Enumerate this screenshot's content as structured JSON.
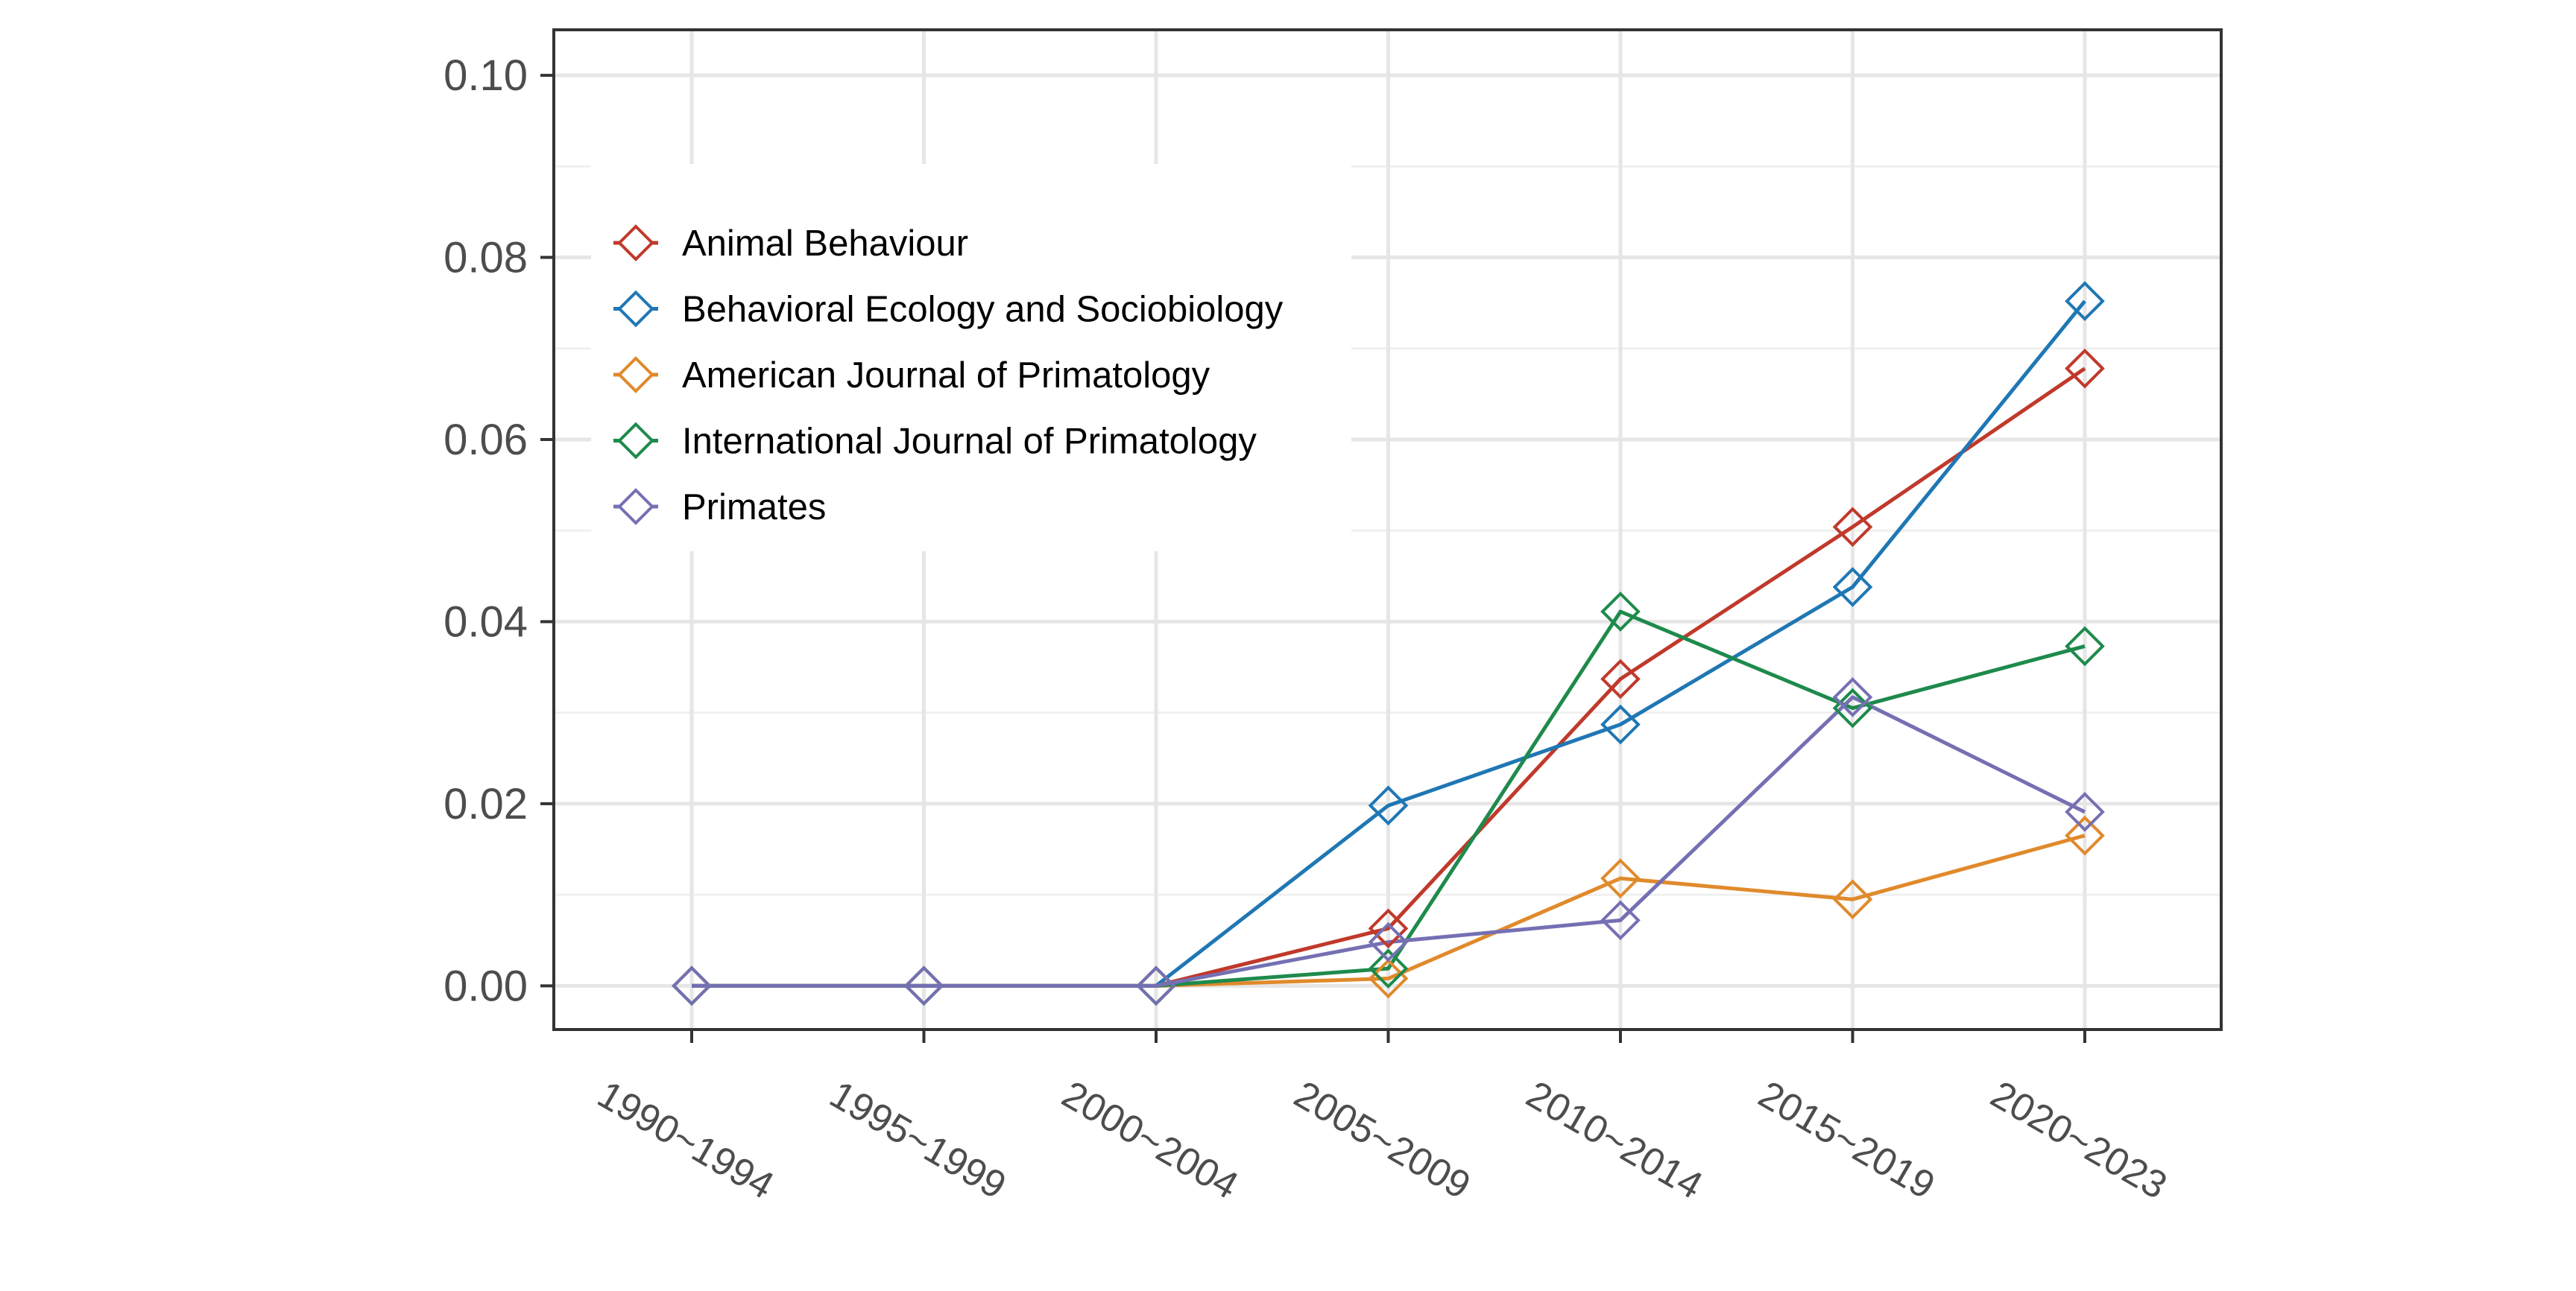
{
  "chart_data": {
    "type": "line",
    "title": "",
    "xlabel": "",
    "ylabel": "",
    "categories": [
      "1990~1994",
      "1995~1999",
      "2000~2004",
      "2005~2009",
      "2010~2014",
      "2015~2019",
      "2020~2023"
    ],
    "ylim": [
      -0.0048,
      0.105
    ],
    "yticks": [
      "0.00",
      "0.02",
      "0.04",
      "0.06",
      "0.08",
      "0.10"
    ],
    "ytick_values": [
      0,
      0.02,
      0.04,
      0.06,
      0.08,
      0.1
    ],
    "grid": true,
    "marker": "open-diamond",
    "legend_position": "top-left",
    "series": [
      {
        "name": "Animal Behaviour",
        "color": "#c0392b",
        "values": [
          0,
          0,
          0,
          0.0063,
          0.0337,
          0.0504,
          0.0678
        ]
      },
      {
        "name": "Behavioral Ecology and Sociobiology",
        "color": "#1f77b4",
        "values": [
          0,
          0,
          0,
          0.0198,
          0.0287,
          0.0438,
          0.0752
        ]
      },
      {
        "name": "American Journal of Primatology",
        "color": "#e08a2c",
        "values": [
          0,
          0,
          0,
          0.0008,
          0.0118,
          0.0095,
          0.0165
        ]
      },
      {
        "name": "International Journal of Primatology",
        "color": "#1e8a4c",
        "values": [
          0,
          0,
          0,
          0.0019,
          0.0411,
          0.0305,
          0.0373
        ]
      },
      {
        "name": "Primates",
        "color": "#7570b3",
        "values": [
          0,
          0,
          0,
          0.0048,
          0.0072,
          0.0317,
          0.0191
        ]
      }
    ]
  }
}
